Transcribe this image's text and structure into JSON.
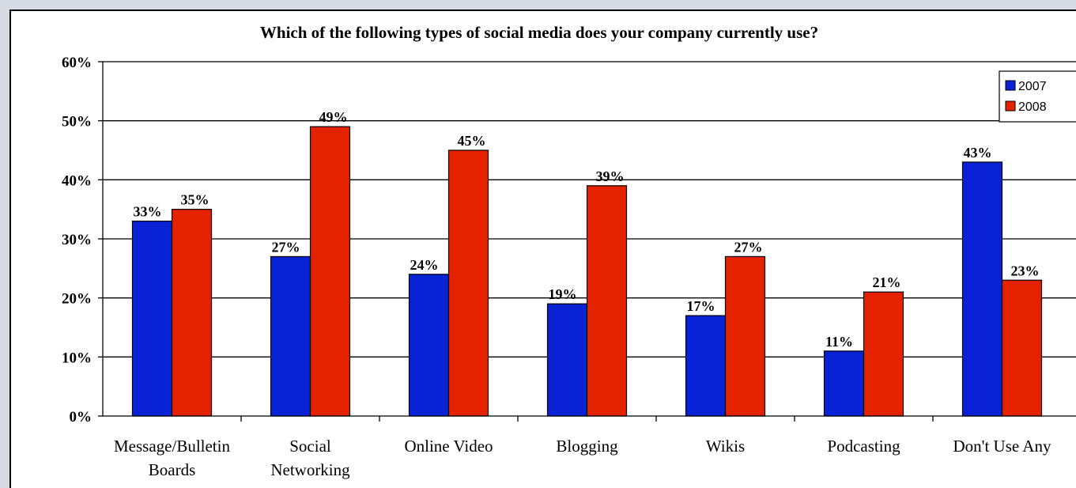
{
  "chart_data": {
    "type": "bar",
    "title": "Which of the following types of social media does your company currently use?",
    "categories": [
      [
        "Message/Bulletin",
        "Boards"
      ],
      [
        "Social",
        "Networking"
      ],
      [
        "Online Video"
      ],
      [
        "Blogging"
      ],
      [
        "Wikis"
      ],
      [
        "Podcasting"
      ],
      [
        "Don't Use Any"
      ]
    ],
    "series": [
      {
        "name": "2007",
        "color": "#0a22d6",
        "values": [
          33,
          27,
          24,
          19,
          17,
          11,
          43
        ]
      },
      {
        "name": "2008",
        "color": "#e42200",
        "values": [
          35,
          49,
          45,
          39,
          27,
          21,
          23
        ]
      }
    ],
    "ylim": [
      0,
      60
    ],
    "yticks": [
      0,
      10,
      20,
      30,
      40,
      50,
      60
    ],
    "tick_format": "{v}%",
    "label_format": "{v}%",
    "grid": true,
    "legend": "top-right",
    "xlabel": "",
    "ylabel": ""
  }
}
